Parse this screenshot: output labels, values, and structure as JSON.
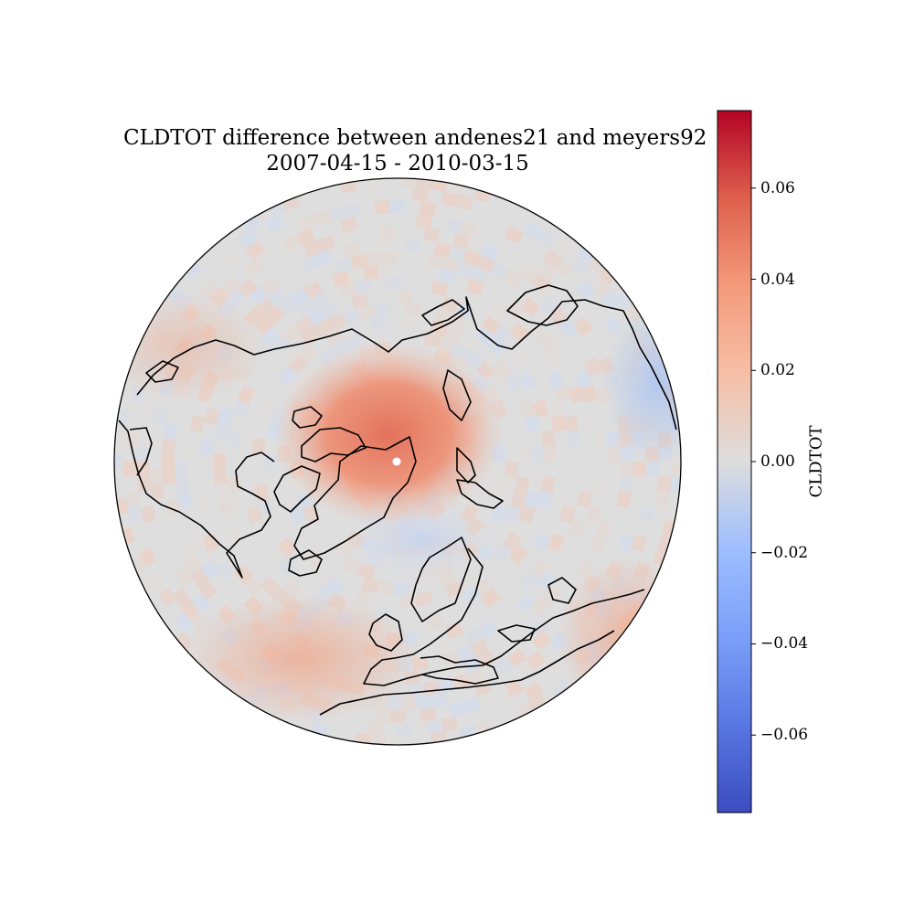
{
  "title": "CLDTOT difference between andenes21 and meyers92",
  "subtitle": "2007-04-15 - 2010-03-15",
  "map": {
    "projection": "north-polar orthographic",
    "field": "CLDTOT difference",
    "features": [
      "coastlines",
      "gridded difference field"
    ],
    "pattern": [
      {
        "region": "Central Arctic / north of Greenland",
        "value": 0.05
      },
      {
        "region": "Canadian Arctic Archipelago",
        "value": 0.04
      },
      {
        "region": "Siberian Arctic",
        "value": 0.025
      },
      {
        "region": "Barents/Norwegian Sea",
        "value": -0.02
      },
      {
        "region": "Mid-latitudes",
        "value": 0.0
      },
      {
        "region": "Rim near 0 longitude / North Africa",
        "value": 0.025
      },
      {
        "region": "Northwest Pacific rim",
        "value": -0.025
      }
    ]
  },
  "colorbar": {
    "label": "CLDTOT",
    "cmap": "coolwarm",
    "vmin": -0.077,
    "vmax": 0.077,
    "ticks": [
      0.06,
      0.04,
      0.02,
      0.0,
      -0.02,
      -0.04,
      -0.06
    ],
    "tick_labels": [
      "0.06",
      "0.04",
      "0.02",
      "0.00",
      "−0.02",
      "−0.04",
      "−0.06"
    ],
    "colors": {
      "high": "#b40426",
      "mid": "#dddddd",
      "low": "#3b4cc0"
    }
  }
}
